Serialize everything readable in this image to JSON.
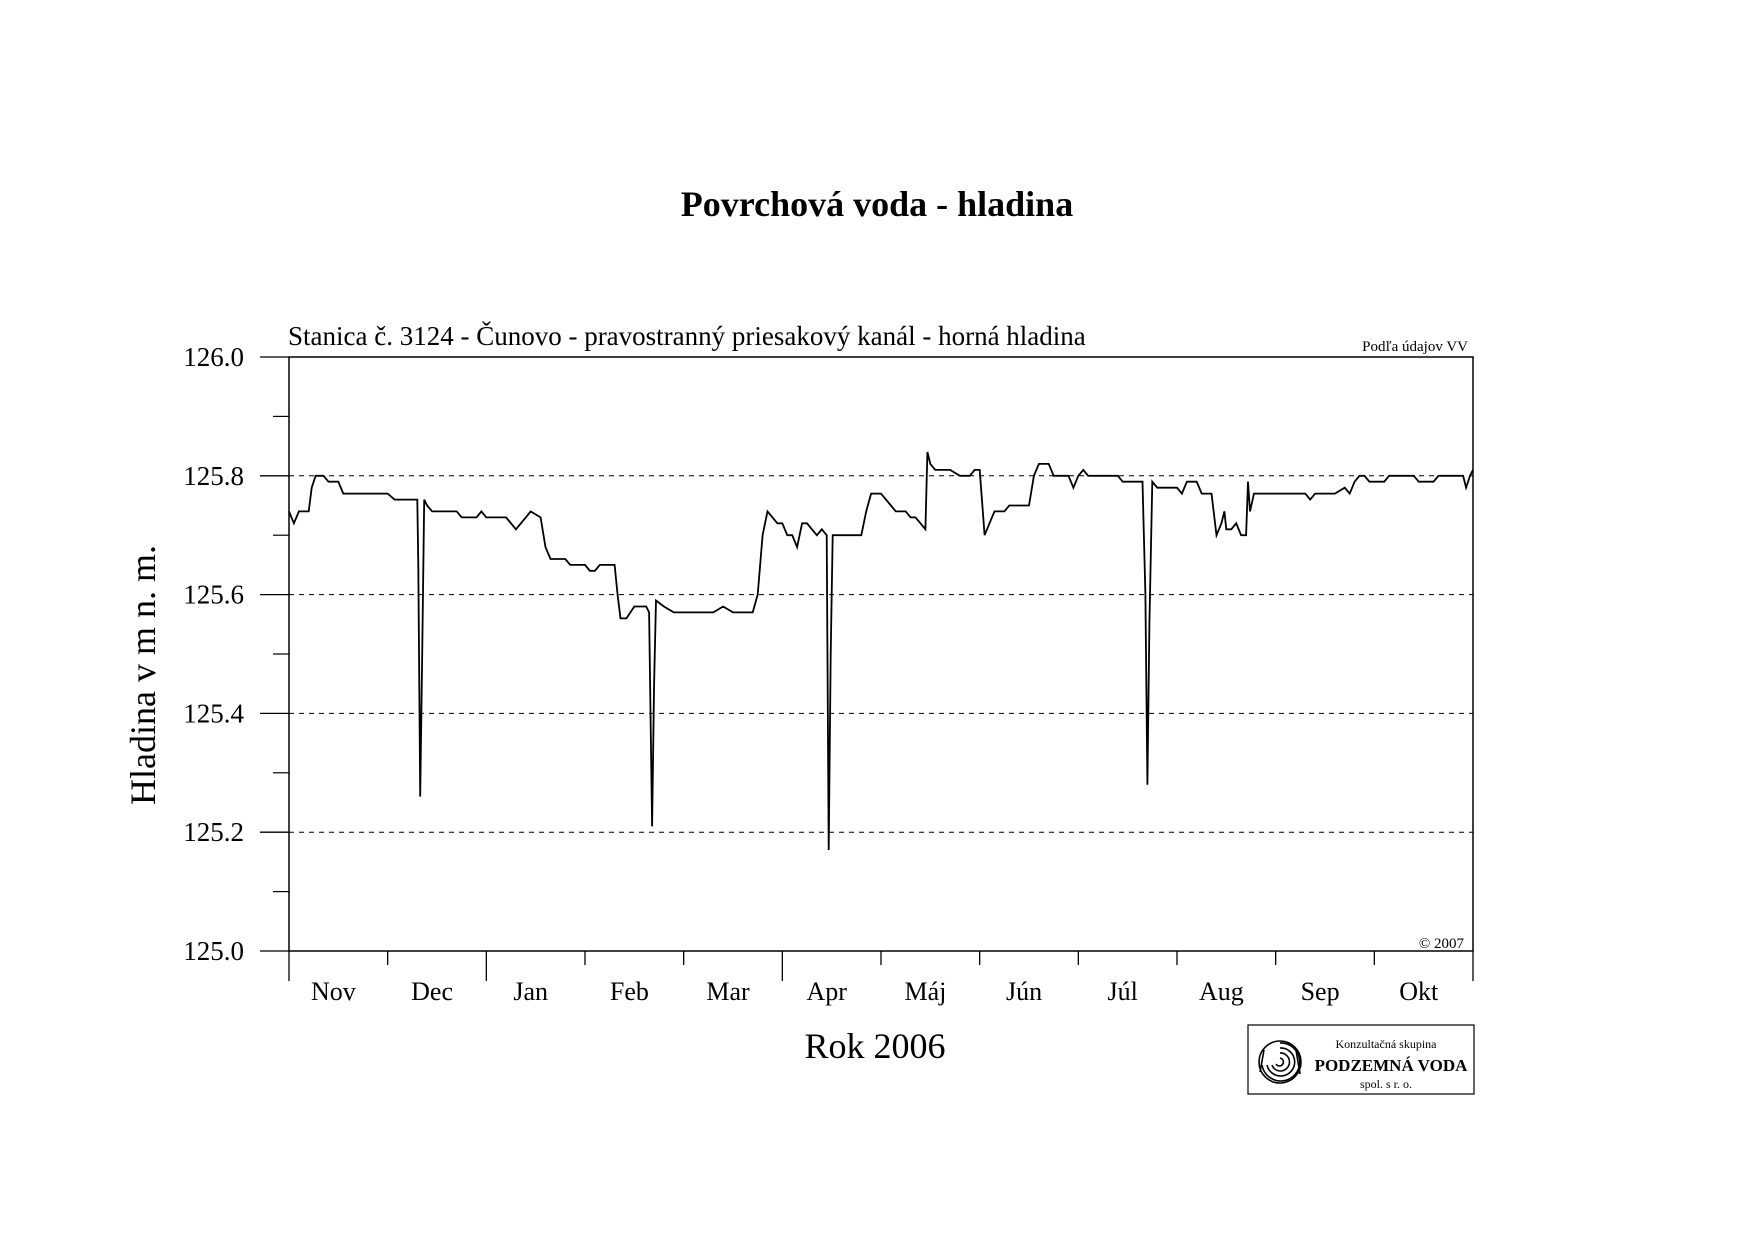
{
  "chart_data": {
    "type": "line",
    "title": "Povrchová voda - hladina",
    "subtitle": "Stanica č. 3124 - Čunovo - pravostranný priesakový kanál - horná hladina",
    "source_note": "Podľa údajov VV",
    "copyright": "© 2007",
    "xlabel": "Rok 2006",
    "ylabel": "Hladina v m n. m.",
    "ylim": [
      125.0,
      126.0
    ],
    "yticks": [
      "126.0",
      "125.8",
      "125.6",
      "125.4",
      "125.2",
      "125.0"
    ],
    "grid": "horizontal dashed at major ticks",
    "month_labels": [
      "Nov",
      "Dec",
      "Jan",
      "Feb",
      "Mar",
      "Apr",
      "Máj",
      "Jún",
      "Júl",
      "Aug",
      "Sep",
      "Okt"
    ],
    "x_unit": "months from 1 Nov 2005",
    "series": [
      {
        "points": [
          [
            0.0,
            125.74
          ],
          [
            0.05,
            125.72
          ],
          [
            0.1,
            125.74
          ],
          [
            0.2,
            125.74
          ],
          [
            0.23,
            125.78
          ],
          [
            0.27,
            125.8
          ],
          [
            0.35,
            125.8
          ],
          [
            0.4,
            125.79
          ],
          [
            0.5,
            125.79
          ],
          [
            0.55,
            125.77
          ],
          [
            0.7,
            125.77
          ],
          [
            1.0,
            125.77
          ],
          [
            1.07,
            125.76
          ],
          [
            1.3,
            125.76
          ],
          [
            1.31,
            125.65
          ],
          [
            1.33,
            125.26
          ],
          [
            1.35,
            125.5
          ],
          [
            1.37,
            125.76
          ],
          [
            1.4,
            125.75
          ],
          [
            1.45,
            125.74
          ],
          [
            1.7,
            125.74
          ],
          [
            1.75,
            125.73
          ],
          [
            1.9,
            125.73
          ],
          [
            1.95,
            125.74
          ],
          [
            2.0,
            125.73
          ],
          [
            2.2,
            125.73
          ],
          [
            2.3,
            125.71
          ],
          [
            2.4,
            125.73
          ],
          [
            2.45,
            125.74
          ],
          [
            2.55,
            125.73
          ],
          [
            2.6,
            125.68
          ],
          [
            2.65,
            125.66
          ],
          [
            2.8,
            125.66
          ],
          [
            2.85,
            125.65
          ],
          [
            3.0,
            125.65
          ],
          [
            3.05,
            125.64
          ],
          [
            3.1,
            125.64
          ],
          [
            3.15,
            125.65
          ],
          [
            3.3,
            125.65
          ],
          [
            3.33,
            125.6
          ],
          [
            3.36,
            125.56
          ],
          [
            3.42,
            125.56
          ],
          [
            3.5,
            125.58
          ],
          [
            3.62,
            125.58
          ],
          [
            3.65,
            125.57
          ],
          [
            3.68,
            125.21
          ],
          [
            3.7,
            125.45
          ],
          [
            3.72,
            125.59
          ],
          [
            3.8,
            125.58
          ],
          [
            3.9,
            125.57
          ],
          [
            4.0,
            125.57
          ],
          [
            4.2,
            125.57
          ],
          [
            4.3,
            125.57
          ],
          [
            4.4,
            125.58
          ],
          [
            4.5,
            125.57
          ],
          [
            4.7,
            125.57
          ],
          [
            4.75,
            125.6
          ],
          [
            4.8,
            125.7
          ],
          [
            4.85,
            125.74
          ],
          [
            4.9,
            125.73
          ],
          [
            4.95,
            125.72
          ],
          [
            5.0,
            125.72
          ],
          [
            5.05,
            125.7
          ],
          [
            5.1,
            125.7
          ],
          [
            5.15,
            125.68
          ],
          [
            5.2,
            125.72
          ],
          [
            5.25,
            125.72
          ],
          [
            5.3,
            125.71
          ],
          [
            5.35,
            125.7
          ],
          [
            5.4,
            125.71
          ],
          [
            5.45,
            125.7
          ],
          [
            5.47,
            125.17
          ],
          [
            5.49,
            125.5
          ],
          [
            5.51,
            125.7
          ],
          [
            5.6,
            125.7
          ],
          [
            5.8,
            125.7
          ],
          [
            5.85,
            125.74
          ],
          [
            5.9,
            125.77
          ],
          [
            6.0,
            125.77
          ],
          [
            6.1,
            125.75
          ],
          [
            6.15,
            125.74
          ],
          [
            6.25,
            125.74
          ],
          [
            6.3,
            125.73
          ],
          [
            6.35,
            125.73
          ],
          [
            6.4,
            125.72
          ],
          [
            6.45,
            125.71
          ],
          [
            6.47,
            125.84
          ],
          [
            6.5,
            125.82
          ],
          [
            6.55,
            125.81
          ],
          [
            6.7,
            125.81
          ],
          [
            6.8,
            125.8
          ],
          [
            6.9,
            125.8
          ],
          [
            6.95,
            125.81
          ],
          [
            7.0,
            125.81
          ],
          [
            7.05,
            125.7
          ],
          [
            7.1,
            125.72
          ],
          [
            7.15,
            125.74
          ],
          [
            7.25,
            125.74
          ],
          [
            7.3,
            125.75
          ],
          [
            7.5,
            125.75
          ],
          [
            7.55,
            125.8
          ],
          [
            7.6,
            125.82
          ],
          [
            7.7,
            125.82
          ],
          [
            7.75,
            125.8
          ],
          [
            7.9,
            125.8
          ],
          [
            7.95,
            125.78
          ],
          [
            8.0,
            125.8
          ],
          [
            8.05,
            125.81
          ],
          [
            8.1,
            125.8
          ],
          [
            8.2,
            125.8
          ],
          [
            8.4,
            125.8
          ],
          [
            8.45,
            125.79
          ],
          [
            8.65,
            125.79
          ],
          [
            8.68,
            125.6
          ],
          [
            8.7,
            125.28
          ],
          [
            8.72,
            125.55
          ],
          [
            8.75,
            125.79
          ],
          [
            8.8,
            125.78
          ],
          [
            9.0,
            125.78
          ],
          [
            9.05,
            125.77
          ],
          [
            9.1,
            125.79
          ],
          [
            9.2,
            125.79
          ],
          [
            9.25,
            125.77
          ],
          [
            9.35,
            125.77
          ],
          [
            9.4,
            125.7
          ],
          [
            9.45,
            125.72
          ],
          [
            9.48,
            125.74
          ],
          [
            9.5,
            125.71
          ],
          [
            9.55,
            125.71
          ],
          [
            9.6,
            125.72
          ],
          [
            9.65,
            125.7
          ],
          [
            9.7,
            125.7
          ],
          [
            9.72,
            125.79
          ],
          [
            9.74,
            125.74
          ],
          [
            9.78,
            125.77
          ],
          [
            10.0,
            125.77
          ],
          [
            10.2,
            125.77
          ],
          [
            10.3,
            125.77
          ],
          [
            10.35,
            125.76
          ],
          [
            10.4,
            125.77
          ],
          [
            10.6,
            125.77
          ],
          [
            10.7,
            125.78
          ],
          [
            10.75,
            125.77
          ],
          [
            10.8,
            125.79
          ],
          [
            10.85,
            125.8
          ],
          [
            10.9,
            125.8
          ],
          [
            10.95,
            125.79
          ],
          [
            11.1,
            125.79
          ],
          [
            11.15,
            125.8
          ],
          [
            11.4,
            125.8
          ],
          [
            11.45,
            125.79
          ],
          [
            11.6,
            125.79
          ],
          [
            11.65,
            125.8
          ],
          [
            11.9,
            125.8
          ],
          [
            11.93,
            125.78
          ],
          [
            11.97,
            125.8
          ],
          [
            12.0,
            125.81
          ]
        ]
      }
    ]
  },
  "logo": {
    "top_text": "Konzultačná skupina",
    "name": "PODZEMNÁ VODA",
    "bottom_text": "spol. s r. o."
  }
}
